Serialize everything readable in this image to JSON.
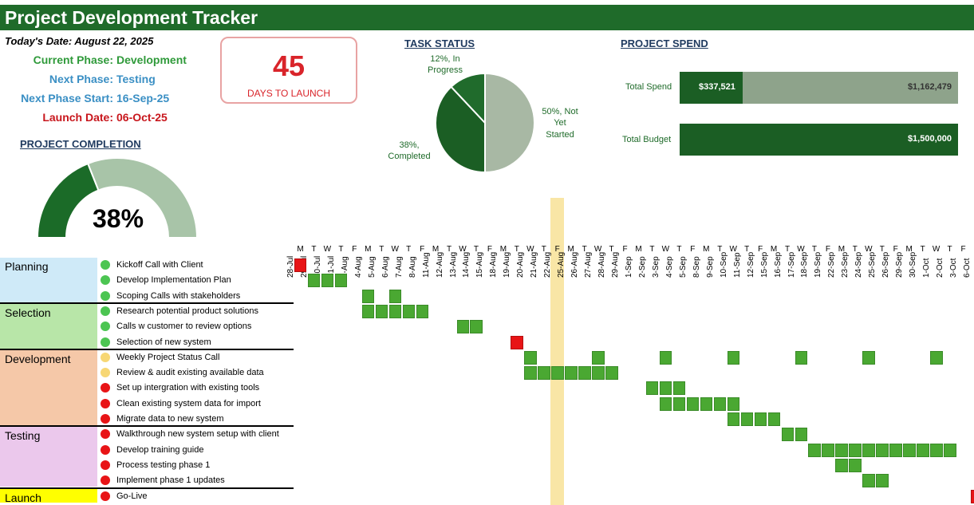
{
  "header": {
    "title": "Project Development Tracker"
  },
  "summary": {
    "todays_date": "Today's Date: August 22, 2025",
    "current_phase_label": "Current Phase:",
    "current_phase_value": "Development",
    "next_phase_label": "Next Phase:",
    "next_phase_value": "Testing",
    "next_phase_start_label": "Next Phase Start:",
    "next_phase_start_value": "16-Sep-25",
    "launch_date_label": "Launch Date:",
    "launch_date_value": "06-Oct-25"
  },
  "countdown": {
    "days": "45",
    "caption": "DAYS TO LAUNCH"
  },
  "project_completion": {
    "title": "PROJECT COMPLETION",
    "percent_label": "38%",
    "percent": 38
  },
  "task_status": {
    "title": "TASK STATUS",
    "slices": [
      {
        "label_line1": "50%, Not",
        "label_line2": "Yet",
        "label_line3": "Started",
        "value": 50,
        "color": "#a8b8a4"
      },
      {
        "label_line1": "38%,",
        "label_line2": "Completed",
        "label_line3": "",
        "value": 38,
        "color": "#1b5e24"
      },
      {
        "label_line1": "12%, In",
        "label_line2": "Progress",
        "label_line3": "",
        "value": 12,
        "color": "#206b2c"
      }
    ]
  },
  "project_spend": {
    "title": "PROJECT SPEND",
    "total_spend_label": "Total Spend",
    "total_spend_value": "$337,521",
    "remaining_value": "$1,162,479",
    "total_budget_label": "Total Budget",
    "total_budget_value": "$1,500,000",
    "spend_amount": 337521,
    "budget_amount": 1500000,
    "colors": {
      "spent": "#1b5e24",
      "remaining": "#8ea38b",
      "budget": "#1b5e24"
    }
  },
  "timeline": {
    "dates": [
      "28-Jul",
      "29-Jul",
      "30-Jul",
      "31-Jul",
      "1-Aug",
      "4-Aug",
      "5-Aug",
      "6-Aug",
      "7-Aug",
      "8-Aug",
      "11-Aug",
      "12-Aug",
      "13-Aug",
      "14-Aug",
      "15-Aug",
      "18-Aug",
      "19-Aug",
      "20-Aug",
      "21-Aug",
      "22-Aug",
      "25-Aug",
      "26-Aug",
      "27-Aug",
      "28-Aug",
      "29-Aug",
      "1-Sep",
      "2-Sep",
      "3-Sep",
      "4-Sep",
      "5-Sep",
      "8-Sep",
      "9-Sep",
      "10-Sep",
      "11-Sep",
      "12-Sep",
      "15-Sep",
      "16-Sep",
      "17-Sep",
      "18-Sep",
      "19-Sep",
      "22-Sep",
      "23-Sep",
      "24-Sep",
      "25-Sep",
      "26-Sep",
      "29-Sep",
      "30-Sep",
      "1-Oct",
      "2-Oct",
      "3-Oct",
      "6-Oct"
    ],
    "days": [
      "M",
      "T",
      "W",
      "T",
      "F",
      "M",
      "T",
      "W",
      "T",
      "F",
      "M",
      "T",
      "W",
      "T",
      "F",
      "M",
      "T",
      "W",
      "T",
      "F",
      "M",
      "T",
      "W",
      "T",
      "F",
      "M",
      "T",
      "W",
      "T",
      "F",
      "M",
      "T",
      "W",
      "T",
      "F",
      "M",
      "T",
      "W",
      "T",
      "F",
      "M",
      "T",
      "W",
      "T",
      "F",
      "M",
      "T",
      "W",
      "T",
      "F",
      "M"
    ],
    "today_index": 19,
    "colors": {
      "task": "#4aa832",
      "milestone": "#e81416",
      "today": "#f9e6a6"
    }
  },
  "phases": [
    {
      "name": "Planning",
      "color": "#cfeaf8"
    },
    {
      "name": "Selection",
      "color": "#b8e6a8"
    },
    {
      "name": "Development",
      "color": "#f5c8a8"
    },
    {
      "name": "Testing",
      "color": "#ebc8ec"
    },
    {
      "name": "Launch",
      "color": "#ffff00"
    }
  ],
  "tasks": [
    {
      "name": "Kickoff Call with Client",
      "status": "done",
      "cells": [
        0
      ],
      "milestone": true
    },
    {
      "name": "Develop Implementation Plan",
      "status": "done",
      "cells": [
        1,
        2,
        3
      ]
    },
    {
      "name": "Scoping Calls with stakeholders",
      "status": "done",
      "cells": [
        5,
        7
      ]
    },
    {
      "name": "Research potential product solutions",
      "status": "done",
      "cells": [
        5,
        6,
        7,
        8,
        9
      ]
    },
    {
      "name": "Calls w customer to review options",
      "status": "done",
      "cells": [
        12,
        13
      ]
    },
    {
      "name": "Selection of new system",
      "status": "done",
      "cells": [
        16
      ],
      "milestone": true
    },
    {
      "name": "Weekly Project Status Call",
      "status": "in-progress",
      "cells": [
        17,
        22,
        27,
        32,
        37,
        42,
        47
      ]
    },
    {
      "name": "Review & audit existing available data",
      "status": "in-progress",
      "cells": [
        17,
        18,
        19,
        20,
        21,
        22,
        23
      ]
    },
    {
      "name": "Set up intergration with existing tools",
      "status": "not-started",
      "cells": [
        26,
        27,
        28
      ]
    },
    {
      "name": "Clean existing system data for import",
      "status": "not-started",
      "cells": [
        27,
        28,
        29,
        30,
        31,
        32
      ]
    },
    {
      "name": "Migrate data to new system",
      "status": "not-started",
      "cells": [
        32,
        33,
        34,
        35
      ]
    },
    {
      "name": "Walkthrough new system setup with client",
      "status": "not-started",
      "cells": [
        36,
        37
      ]
    },
    {
      "name": "Develop training guide",
      "status": "not-started",
      "cells": [
        38,
        39,
        40,
        41,
        42,
        43,
        44,
        45,
        46,
        47,
        48
      ]
    },
    {
      "name": "Process testing phase 1",
      "status": "not-started",
      "cells": [
        40,
        41
      ]
    },
    {
      "name": "Implement phase 1 updates",
      "status": "not-started",
      "cells": [
        42,
        43
      ]
    },
    {
      "name": "Go-Live",
      "status": "not-started",
      "cells": [
        50
      ],
      "milestone": true
    }
  ],
  "status_colors": {
    "done": "#4cc552",
    "in-progress": "#f7d774",
    "not-started": "#e81416"
  }
}
